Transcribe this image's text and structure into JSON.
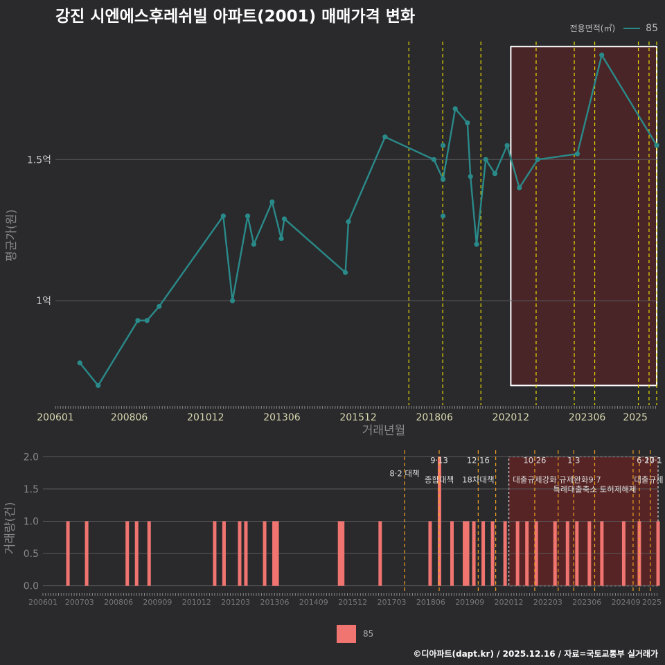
{
  "title": "강진 시엔에스후레쉬빌 아파트(2001) 매매가격 변화",
  "legend": {
    "title": "전용면적(㎡)",
    "series_label": "85"
  },
  "footer": "©디아파트(dapt.kr) / 2025.12.16 / 자료=국토교통부 실거래가",
  "colors": {
    "background": "#2a2a2c",
    "line": "#2a8a8a",
    "bar": "#f07470",
    "policy": "#e8d800",
    "policy_bottom": "#f0a020",
    "highlight": "#7a1f20"
  },
  "chart_data": [
    {
      "type": "line",
      "title": "강진 시엔에스후레쉬빌 아파트(2001) 매매가격 변화",
      "xlabel": "거래년월",
      "ylabel": "평균가(원)",
      "xlim": [
        2006.0,
        2025.7
      ],
      "ylim": [
        0.63,
        1.93
      ],
      "x_ticks": [
        {
          "x": 2006.0,
          "label": "200601"
        },
        {
          "x": 2008.42,
          "label": "200806"
        },
        {
          "x": 2010.92,
          "label": "201012"
        },
        {
          "x": 2013.42,
          "label": "201306"
        },
        {
          "x": 2015.92,
          "label": "201512"
        },
        {
          "x": 2018.42,
          "label": "201806"
        },
        {
          "x": 2020.92,
          "label": "202012"
        },
        {
          "x": 2023.42,
          "label": "202306"
        },
        {
          "x": 2025.0,
          "label": "2025"
        }
      ],
      "y_ticks": [
        {
          "y": 1.0,
          "label": "1억"
        },
        {
          "y": 1.5,
          "label": "1.5억"
        }
      ],
      "series": [
        {
          "name": "85",
          "points": [
            [
              2006.8,
              0.78
            ],
            [
              2007.4,
              0.7
            ],
            [
              2008.7,
              0.93
            ],
            [
              2009.0,
              0.93
            ],
            [
              2009.4,
              0.98
            ],
            [
              2011.5,
              1.3
            ],
            [
              2011.8,
              1.0
            ],
            [
              2012.3,
              1.3
            ],
            [
              2012.5,
              1.2
            ],
            [
              2013.1,
              1.35
            ],
            [
              2013.4,
              1.22
            ],
            [
              2013.5,
              1.29
            ],
            [
              2015.5,
              1.1
            ],
            [
              2015.6,
              1.28
            ],
            [
              2016.8,
              1.58
            ],
            [
              2018.4,
              1.5
            ],
            [
              2018.7,
              1.43
            ],
            [
              2019.1,
              1.68
            ],
            [
              2019.5,
              1.63
            ],
            [
              2019.6,
              1.44
            ],
            [
              2019.8,
              1.2
            ],
            [
              2020.1,
              1.5
            ],
            [
              2020.4,
              1.45
            ],
            [
              2020.8,
              1.55
            ],
            [
              2021.2,
              1.4
            ],
            [
              2021.8,
              1.5
            ],
            [
              2023.1,
              1.52
            ],
            [
              2023.9,
              1.87
            ],
            [
              2025.7,
              1.55
            ]
          ],
          "extra_points": [
            [
              2018.7,
              1.55
            ],
            [
              2018.7,
              1.3
            ]
          ]
        }
      ],
      "policy_lines": [
        2017.58,
        2018.69,
        2019.94,
        2021.75,
        2023.0,
        2023.67,
        2025.1,
        2025.45,
        2025.7
      ],
      "highlight_range": [
        2020.92,
        2025.7
      ],
      "highlight_y_range": [
        0.7,
        1.9
      ]
    },
    {
      "type": "bar",
      "ylabel": "거래량(건)",
      "xlim": [
        2006.0,
        2025.7
      ],
      "ylim": [
        -0.1,
        2.1
      ],
      "x_ticks": [
        {
          "x": 2006.0,
          "label": "200601"
        },
        {
          "x": 2007.17,
          "label": "200703"
        },
        {
          "x": 2008.42,
          "label": "200806"
        },
        {
          "x": 2009.67,
          "label": "200909"
        },
        {
          "x": 2010.92,
          "label": "201012"
        },
        {
          "x": 2012.17,
          "label": "201203"
        },
        {
          "x": 2013.42,
          "label": "201306"
        },
        {
          "x": 2014.67,
          "label": "201409"
        },
        {
          "x": 2015.92,
          "label": "201512"
        },
        {
          "x": 2017.17,
          "label": "201703"
        },
        {
          "x": 2018.42,
          "label": "201806"
        },
        {
          "x": 2019.67,
          "label": "201909"
        },
        {
          "x": 2020.92,
          "label": "202012"
        },
        {
          "x": 2022.17,
          "label": "202203"
        },
        {
          "x": 2023.42,
          "label": "202306"
        },
        {
          "x": 2024.67,
          "label": "202409"
        },
        {
          "x": 2025.5,
          "label": "2025"
        }
      ],
      "y_ticks": [
        {
          "y": 0.0,
          "label": "0.0"
        },
        {
          "y": 0.5,
          "label": "0.5"
        },
        {
          "y": 1.0,
          "label": "1.0"
        },
        {
          "y": 1.5,
          "label": "1.5"
        },
        {
          "y": 2.0,
          "label": "2.0"
        }
      ],
      "bars": [
        [
          2006.8,
          1
        ],
        [
          2007.4,
          1
        ],
        [
          2008.7,
          1
        ],
        [
          2009.0,
          1
        ],
        [
          2009.4,
          1
        ],
        [
          2011.5,
          1
        ],
        [
          2011.8,
          1
        ],
        [
          2012.3,
          1
        ],
        [
          2012.5,
          1
        ],
        [
          2013.1,
          1
        ],
        [
          2013.4,
          1
        ],
        [
          2013.5,
          1
        ],
        [
          2015.5,
          1
        ],
        [
          2015.6,
          1
        ],
        [
          2016.8,
          1
        ],
        [
          2018.4,
          1
        ],
        [
          2018.7,
          2
        ],
        [
          2019.1,
          1
        ],
        [
          2019.5,
          1
        ],
        [
          2019.6,
          1
        ],
        [
          2019.8,
          1
        ],
        [
          2020.1,
          1
        ],
        [
          2020.4,
          1
        ],
        [
          2020.8,
          1
        ],
        [
          2021.2,
          1
        ],
        [
          2021.5,
          1
        ],
        [
          2021.8,
          1
        ],
        [
          2022.4,
          1
        ],
        [
          2022.8,
          1
        ],
        [
          2023.1,
          1
        ],
        [
          2023.5,
          1
        ],
        [
          2023.9,
          1
        ],
        [
          2024.6,
          1
        ],
        [
          2025.1,
          1
        ],
        [
          2025.7,
          1
        ]
      ],
      "policy_lines": [
        2017.58,
        2018.69,
        2019.94,
        2020.5,
        2021.75,
        2022.5,
        2023.0,
        2023.67,
        2024.9,
        2025.1,
        2025.45
      ],
      "highlight_range": [
        2020.92,
        2025.7
      ],
      "annotations": [
        {
          "x": 2017.58,
          "y": 1.7,
          "text": "8·2 대책"
        },
        {
          "x": 2018.69,
          "y": 1.9,
          "text": "9·13"
        },
        {
          "x": 2018.69,
          "y": 1.6,
          "text": "종합대책"
        },
        {
          "x": 2019.94,
          "y": 1.9,
          "text": "12·16"
        },
        {
          "x": 2019.94,
          "y": 1.6,
          "text": "18차대책"
        },
        {
          "x": 2021.75,
          "y": 1.9,
          "text": "10·26"
        },
        {
          "x": 2021.75,
          "y": 1.6,
          "text": "대출규제강화"
        },
        {
          "x": 2023.0,
          "y": 1.9,
          "text": "1·3"
        },
        {
          "x": 2023.0,
          "y": 1.6,
          "text": "규제완화"
        },
        {
          "x": 2023.67,
          "y": 1.6,
          "text": "9·7"
        },
        {
          "x": 2023.67,
          "y": 1.45,
          "text": "특례대출축소 토허제해제"
        },
        {
          "x": 2025.3,
          "y": 1.9,
          "text": "6·27"
        },
        {
          "x": 2025.55,
          "y": 1.9,
          "text": "10·1"
        },
        {
          "x": 2025.4,
          "y": 1.6,
          "text": "대출규제"
        }
      ]
    }
  ]
}
